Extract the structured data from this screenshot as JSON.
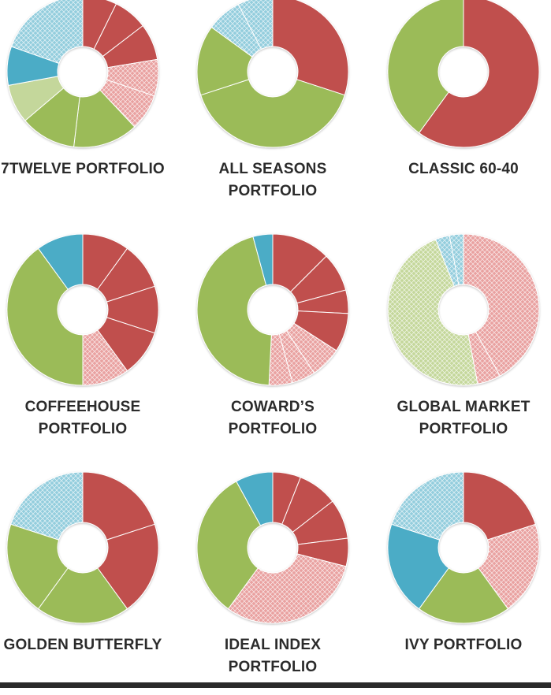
{
  "colors": {
    "stock": "#c0504d",
    "intl_stock": "#e9a1a0",
    "bond": "#9bbb59",
    "tips": "#c4d79b",
    "commodities": "#4bacc6",
    "reits": "#93cddd",
    "hatch_line": "#ffffff"
  },
  "chart_data": [
    {
      "type": "pie",
      "label": "7TWELVE PORTFOLIO",
      "slices": [
        {
          "value": 7.3,
          "color": "stock",
          "hatch": false
        },
        {
          "value": 7.3,
          "color": "stock",
          "hatch": false
        },
        {
          "value": 7.8,
          "color": "stock",
          "hatch": false
        },
        {
          "value": 7.8,
          "color": "intl_stock",
          "hatch": true
        },
        {
          "value": 7.8,
          "color": "intl_stock",
          "hatch": true
        },
        {
          "value": 13.9,
          "color": "bond",
          "hatch": false
        },
        {
          "value": 11.9,
          "color": "bond",
          "hatch": false
        },
        {
          "value": 8.3,
          "color": "tips",
          "hatch": false
        },
        {
          "value": 8.3,
          "color": "commodities",
          "hatch": false
        },
        {
          "value": 19.6,
          "color": "reits",
          "hatch": true
        }
      ]
    },
    {
      "type": "pie",
      "label": "ALL SEASONS PORTFOLIO",
      "slices": [
        {
          "value": 30,
          "color": "stock",
          "hatch": false
        },
        {
          "value": 40,
          "color": "bond",
          "hatch": false
        },
        {
          "value": 15,
          "color": "bond",
          "hatch": false
        },
        {
          "value": 7.5,
          "color": "reits",
          "hatch": true
        },
        {
          "value": 7.5,
          "color": "reits",
          "hatch": true
        }
      ]
    },
    {
      "type": "pie",
      "label": "CLASSIC 60-40",
      "slices": [
        {
          "value": 60,
          "color": "stock",
          "hatch": false
        },
        {
          "value": 40,
          "color": "bond",
          "hatch": false
        }
      ]
    },
    {
      "type": "pie",
      "label": "COFFEEHOUSE PORTFOLIO",
      "slices": [
        {
          "value": 10,
          "color": "stock",
          "hatch": false
        },
        {
          "value": 10,
          "color": "stock",
          "hatch": false
        },
        {
          "value": 10,
          "color": "stock",
          "hatch": false
        },
        {
          "value": 10,
          "color": "stock",
          "hatch": false
        },
        {
          "value": 10,
          "color": "intl_stock",
          "hatch": true
        },
        {
          "value": 40,
          "color": "bond",
          "hatch": false
        },
        {
          "value": 10,
          "color": "commodities",
          "hatch": false
        }
      ]
    },
    {
      "type": "pie",
      "label": "COWARD’S PORTFOLIO",
      "slices": [
        {
          "value": 12.5,
          "color": "stock",
          "hatch": false
        },
        {
          "value": 8.3,
          "color": "stock",
          "hatch": false
        },
        {
          "value": 5,
          "color": "stock",
          "hatch": false
        },
        {
          "value": 8.3,
          "color": "stock",
          "hatch": false
        },
        {
          "value": 6.7,
          "color": "intl_stock",
          "hatch": true
        },
        {
          "value": 5,
          "color": "intl_stock",
          "hatch": true
        },
        {
          "value": 5,
          "color": "intl_stock",
          "hatch": true
        },
        {
          "value": 45,
          "color": "bond",
          "hatch": false
        },
        {
          "value": 4.2,
          "color": "commodities",
          "hatch": false
        }
      ]
    },
    {
      "type": "pie",
      "label": "GLOBAL MARKET PORTFOLIO",
      "slices": [
        {
          "value": 42,
          "color": "intl_stock",
          "hatch": true
        },
        {
          "value": 5,
          "color": "intl_stock",
          "hatch": true
        },
        {
          "value": 47,
          "color": "tips",
          "hatch": true
        },
        {
          "value": 3,
          "color": "reits",
          "hatch": true
        },
        {
          "value": 3,
          "color": "reits",
          "hatch": true
        }
      ]
    },
    {
      "type": "pie",
      "label": "GOLDEN BUTTERFLY",
      "slices": [
        {
          "value": 20,
          "color": "stock",
          "hatch": false
        },
        {
          "value": 20,
          "color": "stock",
          "hatch": false
        },
        {
          "value": 20,
          "color": "bond",
          "hatch": false
        },
        {
          "value": 20,
          "color": "bond",
          "hatch": false
        },
        {
          "value": 20,
          "color": "reits",
          "hatch": true
        }
      ]
    },
    {
      "type": "pie",
      "label": "IDEAL INDEX PORTFOLIO",
      "slices": [
        {
          "value": 6,
          "color": "stock",
          "hatch": false
        },
        {
          "value": 8.5,
          "color": "stock",
          "hatch": false
        },
        {
          "value": 8.5,
          "color": "stock",
          "hatch": false
        },
        {
          "value": 6,
          "color": "stock",
          "hatch": false
        },
        {
          "value": 31,
          "color": "intl_stock",
          "hatch": true
        },
        {
          "value": 32,
          "color": "bond",
          "hatch": false
        },
        {
          "value": 8,
          "color": "commodities",
          "hatch": false
        }
      ]
    },
    {
      "type": "pie",
      "label": "IVY PORTFOLIO",
      "slices": [
        {
          "value": 20,
          "color": "stock",
          "hatch": false
        },
        {
          "value": 20,
          "color": "intl_stock",
          "hatch": true
        },
        {
          "value": 20,
          "color": "bond",
          "hatch": false
        },
        {
          "value": 20,
          "color": "commodities",
          "hatch": false
        },
        {
          "value": 20,
          "color": "reits",
          "hatch": true
        }
      ]
    }
  ]
}
